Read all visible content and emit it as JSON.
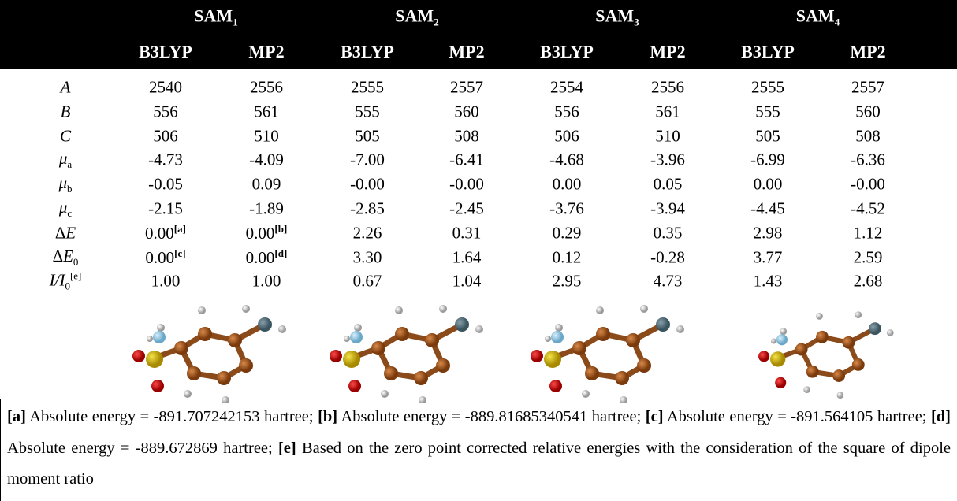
{
  "table": {
    "groups": [
      {
        "name": "SAM",
        "index": "1"
      },
      {
        "name": "SAM",
        "index": "2"
      },
      {
        "name": "SAM",
        "index": "3"
      },
      {
        "name": "SAM",
        "index": "4"
      }
    ],
    "methods": [
      "B3LYP",
      "MP2",
      "B3LYP",
      "MP2",
      "B3LYP",
      "MP2",
      "B3LYP",
      "MP2"
    ],
    "rows": [
      {
        "label": {
          "main": "A"
        },
        "cells": [
          "2540",
          "2556",
          "2555",
          "2557",
          "2554",
          "2556",
          "2555",
          "2557"
        ]
      },
      {
        "label": {
          "main": "B"
        },
        "cells": [
          "556",
          "561",
          "555",
          "560",
          "556",
          "561",
          "555",
          "560"
        ]
      },
      {
        "label": {
          "main": "C"
        },
        "cells": [
          "506",
          "510",
          "505",
          "508",
          "506",
          "510",
          "505",
          "508"
        ]
      },
      {
        "label": {
          "main": "μ",
          "sub": "a"
        },
        "cells": [
          "-4.73",
          "-4.09",
          "-7.00",
          "-6.41",
          "-4.68",
          "-3.96",
          "-6.99",
          "-6.36"
        ]
      },
      {
        "label": {
          "main": "μ",
          "sub": "b"
        },
        "cells": [
          "-0.05",
          "0.09",
          "-0.00",
          "-0.00",
          "0.00",
          "0.05",
          "0.00",
          "-0.00"
        ]
      },
      {
        "label": {
          "main": "μ",
          "sub": "c"
        },
        "cells": [
          "-2.15",
          "-1.89",
          "-2.85",
          "-2.45",
          "-3.76",
          "-3.94",
          "-4.45",
          "-4.52"
        ]
      },
      {
        "label": {
          "prefix": "Δ",
          "main": "E"
        },
        "cells": [
          {
            "text": "0.00",
            "note": "[a]"
          },
          {
            "text": "0.00",
            "note": "[b]"
          },
          "2.26",
          "0.31",
          "0.29",
          "0.35",
          "2.98",
          "1.12"
        ]
      },
      {
        "label": {
          "prefix": "Δ",
          "main": "E",
          "sub": "0"
        },
        "cells": [
          {
            "text": "0.00",
            "note": "[c]"
          },
          {
            "text": "0.00",
            "note": "[d]"
          },
          "3.30",
          "1.64",
          "0.12",
          "-0.28",
          "3.77",
          "2.59"
        ]
      },
      {
        "label": {
          "main": "I/I",
          "sub": "0",
          "sup": "[e]"
        },
        "cells": [
          "1.00",
          "1.00",
          "0.67",
          "1.04",
          "2.95",
          "4.73",
          "1.43",
          "2.68"
        ]
      }
    ],
    "footnotes": [
      {
        "mark": "[a]",
        "text": " Absolute energy = -891.707242153 hartree; "
      },
      {
        "mark": "[b]",
        "text": " Absolute energy = -889.81685340541 hartree; "
      },
      {
        "mark": "[c]",
        "text": " Absolute energy = -891.564105 hartree; "
      },
      {
        "mark": "[d]",
        "text": " Absolute energy = -889.672869 hartree; "
      },
      {
        "mark": "[e]",
        "text": " Based on the zero point corrected relative energies with the consideration of the square of dipole moment ratio"
      }
    ]
  }
}
